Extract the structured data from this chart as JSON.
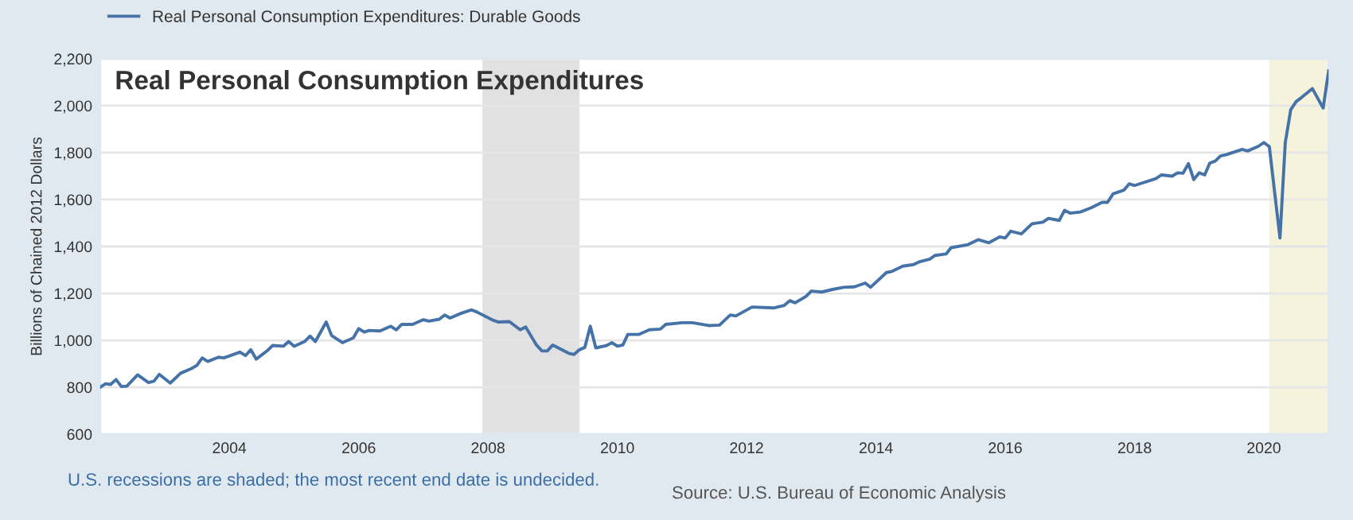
{
  "chart_data": {
    "type": "line",
    "title": "Real Personal Consumption Expenditures",
    "ylabel": "Billions of Chained 2012 Dollars",
    "annotations": [
      "U.S. recessions are shaded; the most recent end date is undecided.",
      "Source: U.S. Bureau of Economic Analysis"
    ],
    "x": [
      "2002-01",
      "2002-02",
      "2002-03",
      "2002-04",
      "2002-05",
      "2002-06",
      "2002-08",
      "2002-10",
      "2002-11",
      "2002-12",
      "2003-02",
      "2003-04",
      "2003-06",
      "2003-07",
      "2003-08",
      "2003-09",
      "2003-11",
      "2003-12",
      "2004-03",
      "2004-04",
      "2004-05",
      "2004-06",
      "2004-08",
      "2004-09",
      "2004-11",
      "2004-12",
      "2005-01",
      "2005-03",
      "2005-04",
      "2005-05",
      "2005-07",
      "2005-08",
      "2005-10",
      "2005-12",
      "2006-01",
      "2006-02",
      "2006-03",
      "2006-05",
      "2006-07",
      "2006-08",
      "2006-09",
      "2006-11",
      "2007-01",
      "2007-02",
      "2007-04",
      "2007-05",
      "2007-06",
      "2007-08",
      "2007-10",
      "2007-11",
      "2008-02",
      "2008-03",
      "2008-05",
      "2008-07",
      "2008-08",
      "2008-10",
      "2008-11",
      "2008-12",
      "2009-01",
      "2009-04",
      "2009-05",
      "2009-06",
      "2009-07",
      "2009-08",
      "2009-09",
      "2009-11",
      "2009-12",
      "2010-01",
      "2010-02",
      "2010-03",
      "2010-05",
      "2010-07",
      "2010-09",
      "2010-10",
      "2011-01",
      "2011-03",
      "2011-06",
      "2011-08",
      "2011-10",
      "2011-11",
      "2012-02",
      "2012-06",
      "2012-08",
      "2012-09",
      "2012-10",
      "2012-12",
      "2013-01",
      "2013-03",
      "2013-05",
      "2013-07",
      "2013-09",
      "2013-11",
      "2013-12",
      "2014-03",
      "2014-04",
      "2014-06",
      "2014-08",
      "2014-09",
      "2014-11",
      "2014-12",
      "2015-02",
      "2015-03",
      "2015-06",
      "2015-08",
      "2015-10",
      "2015-12",
      "2016-01",
      "2016-02",
      "2016-04",
      "2016-06",
      "2016-08",
      "2016-09",
      "2016-11",
      "2016-12",
      "2017-01",
      "2017-03",
      "2017-05",
      "2017-07",
      "2017-08",
      "2017-09",
      "2017-11",
      "2017-12",
      "2018-01",
      "2018-05",
      "2018-06",
      "2018-08",
      "2018-09",
      "2018-10",
      "2018-11",
      "2018-12",
      "2019-01",
      "2019-02",
      "2019-03",
      "2019-04",
      "2019-05",
      "2019-06",
      "2019-09",
      "2019-10",
      "2019-12",
      "2020-01",
      "2020-02",
      "2020-04",
      "2020-05",
      "2020-06",
      "2020-07",
      "2020-08",
      "2020-10",
      "2020-12",
      "2021-01"
    ],
    "series": [
      {
        "name": "Real Personal Consumption Expenditures: Durable Goods",
        "color": "#4572a7",
        "values": [
          800,
          815,
          812,
          833,
          803,
          805,
          853,
          820,
          826,
          855,
          818,
          860,
          880,
          893,
          925,
          910,
          928,
          925,
          950,
          935,
          960,
          920,
          955,
          978,
          975,
          995,
          975,
          995,
          1018,
          995,
          1078,
          1020,
          990,
          1010,
          1050,
          1035,
          1042,
          1040,
          1060,
          1045,
          1068,
          1068,
          1088,
          1082,
          1090,
          1108,
          1095,
          1115,
          1130,
          1120,
          1085,
          1078,
          1080,
          1045,
          1057,
          980,
          955,
          955,
          980,
          945,
          940,
          960,
          970,
          1060,
          968,
          978,
          990,
          975,
          980,
          1025,
          1025,
          1045,
          1048,
          1068,
          1075,
          1075,
          1063,
          1065,
          1108,
          1104,
          1142,
          1138,
          1149,
          1169,
          1160,
          1187,
          1210,
          1206,
          1217,
          1226,
          1228,
          1244,
          1226,
          1289,
          1294,
          1316,
          1323,
          1334,
          1346,
          1362,
          1368,
          1395,
          1407,
          1429,
          1416,
          1441,
          1436,
          1465,
          1454,
          1497,
          1504,
          1520,
          1511,
          1554,
          1542,
          1547,
          1565,
          1588,
          1588,
          1624,
          1640,
          1667,
          1660,
          1689,
          1705,
          1700,
          1714,
          1712,
          1753,
          1685,
          1714,
          1705,
          1755,
          1764,
          1786,
          1791,
          1814,
          1807,
          1827,
          1843,
          1825,
          1436,
          1843,
          1983,
          2017,
          2035,
          2073,
          1990,
          2148
        ]
      }
    ],
    "xlim": [
      "2002-01",
      "2021-01"
    ],
    "xticks": [
      "2004",
      "2006",
      "2008",
      "2010",
      "2012",
      "2014",
      "2016",
      "2018",
      "2020"
    ],
    "ylim": [
      600,
      2200
    ],
    "yticks": [
      600,
      800,
      {
        "value": 1000,
        "label": "1,000"
      },
      {
        "value": 1200,
        "label": "1,200"
      },
      {
        "value": 1400,
        "label": "1,400"
      },
      {
        "value": 1600,
        "label": "1,600"
      },
      {
        "value": 1800,
        "label": "1,800"
      },
      {
        "value": 2000,
        "label": "2,000"
      },
      {
        "value": 2200,
        "label": "2,200"
      }
    ],
    "bands": [
      {
        "axis": "x",
        "from": "2007-12",
        "to": "2009-06",
        "color": "#e1e1e1"
      },
      {
        "axis": "x",
        "from": "2020-02",
        "to": "2021-01",
        "color": "#f5f3dc"
      }
    ],
    "grid": "y",
    "legend": "top left",
    "marker": "none",
    "line_style": "solid"
  }
}
